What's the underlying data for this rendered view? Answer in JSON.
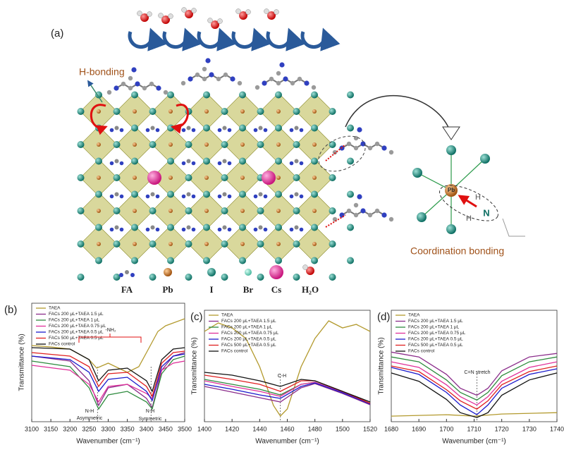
{
  "figure_a": {
    "label": "(a)",
    "h_bonding": "H-bonding",
    "coordination": "Coordination bonding",
    "atom_labels": {
      "pb": "Pb",
      "n": "N",
      "h1": "H",
      "h2": "H"
    },
    "legend": [
      "FA",
      "Pb",
      "I",
      "Br",
      "Cs",
      "H₂O"
    ]
  },
  "chart_data": [
    {
      "type": "line",
      "panel": "(b)",
      "xlabel": "Wavenumber (cm⁻¹)",
      "ylabel": "Transmittance (%)",
      "xlim": [
        3100,
        3500
      ],
      "xticks": [
        3100,
        3150,
        3200,
        3250,
        3300,
        3350,
        3400,
        3450,
        3500
      ],
      "ylim": [
        0,
        168
      ],
      "annotations": [
        "-NH₂",
        "N-H",
        "Asymmetric",
        "N-H",
        "Symmetric"
      ],
      "reference_lines": [
        3272,
        3412
      ],
      "series": [
        {
          "name": "TAEA",
          "color": "#b39a2e",
          "x": [
            3100,
            3150,
            3200,
            3250,
            3270,
            3300,
            3350,
            3380,
            3400,
            3430,
            3450,
            3500
          ],
          "values": [
            108,
            106,
            103,
            88,
            76,
            83,
            70,
            78,
            98,
            128,
            136,
            146
          ]
        },
        {
          "name": "FACs 200 μL+TAEA 1.5 μL",
          "color": "#8b2d8b",
          "x": [
            3100,
            3200,
            3250,
            3275,
            3300,
            3350,
            3400,
            3415,
            3440,
            3470,
            3500
          ],
          "values": [
            93,
            86,
            58,
            23,
            48,
            53,
            33,
            20,
            73,
            93,
            98
          ]
        },
        {
          "name": "FACs 200 μL+TAEA 1 μL",
          "color": "#2e8b3e",
          "x": [
            3100,
            3200,
            3250,
            3275,
            3300,
            3350,
            3400,
            3415,
            3440,
            3470,
            3500
          ],
          "values": [
            86,
            78,
            48,
            18,
            38,
            43,
            28,
            18,
            68,
            88,
            93
          ]
        },
        {
          "name": "FACs 200 μL+TAEA 0.75 μL",
          "color": "#e0309a",
          "x": [
            3100,
            3200,
            3250,
            3275,
            3300,
            3350,
            3400,
            3415,
            3440,
            3470,
            3500
          ],
          "values": [
            80,
            73,
            53,
            28,
            50,
            53,
            40,
            33,
            73,
            83,
            86
          ]
        },
        {
          "name": "FACs 200 μL+TAEA 0.5 μL",
          "color": "#1a1acc",
          "x": [
            3100,
            3200,
            3250,
            3275,
            3300,
            3350,
            3400,
            3415,
            3440,
            3470,
            3500
          ],
          "values": [
            93,
            88,
            70,
            43,
            60,
            63,
            43,
            30,
            78,
            93,
            96
          ]
        },
        {
          "name": "FACs 500 μL+TAEA 0.5 μL",
          "color": "#e02020",
          "x": [
            3100,
            3200,
            3250,
            3275,
            3300,
            3350,
            3400,
            3415,
            3440,
            3470,
            3500
          ],
          "values": [
            98,
            93,
            78,
            50,
            68,
            70,
            50,
            36,
            83,
            98,
            100
          ]
        },
        {
          "name": "FACs control",
          "color": "#111111",
          "x": [
            3100,
            3200,
            3250,
            3275,
            3300,
            3350,
            3400,
            3415,
            3440,
            3470,
            3500
          ],
          "values": [
            105,
            103,
            88,
            58,
            73,
            76,
            58,
            43,
            88,
            103,
            105
          ]
        }
      ]
    },
    {
      "type": "line",
      "panel": "(c)",
      "xlabel": "Wavenumber (cm⁻¹)",
      "ylabel": "Transmittance (%)",
      "xlim": [
        1400,
        1520
      ],
      "xticks": [
        1400,
        1420,
        1440,
        1460,
        1480,
        1500,
        1520
      ],
      "ylim": [
        0,
        158
      ],
      "annotations": [
        "C-H"
      ],
      "reference_lines": [
        1455
      ],
      "series": [
        {
          "name": "TAEA",
          "color": "#b39a2e",
          "x": [
            1400,
            1410,
            1420,
            1430,
            1440,
            1450,
            1455,
            1460,
            1470,
            1480,
            1490,
            1500,
            1510,
            1520
          ],
          "values": [
            128,
            140,
            133,
            118,
            78,
            23,
            8,
            18,
            78,
            118,
            143,
            133,
            138,
            128
          ]
        },
        {
          "name": "FACs 200 μL+TAEA 1.5 μL",
          "color": "#8b2d8b",
          "x": [
            1400,
            1420,
            1440,
            1455,
            1470,
            1480,
            1500,
            1520
          ],
          "values": [
            50,
            42,
            34,
            28,
            48,
            54,
            40,
            24
          ]
        },
        {
          "name": "FACs 200 μL+TAEA 1 μL",
          "color": "#2e8b3e",
          "x": [
            1400,
            1420,
            1440,
            1455,
            1470,
            1480,
            1500,
            1520
          ],
          "values": [
            60,
            53,
            46,
            38,
            53,
            56,
            42,
            26
          ]
        },
        {
          "name": "FACs 200 μL+TAEA 0.75 μL",
          "color": "#e0309a",
          "x": [
            1400,
            1420,
            1440,
            1455,
            1470,
            1480,
            1500,
            1520
          ],
          "values": [
            58,
            50,
            43,
            36,
            53,
            56,
            42,
            26
          ]
        },
        {
          "name": "FACs 200 μL+TAEA 0.5 μL",
          "color": "#1a1acc",
          "x": [
            1400,
            1420,
            1440,
            1455,
            1470,
            1480,
            1500,
            1520
          ],
          "values": [
            53,
            46,
            38,
            33,
            50,
            55,
            41,
            25
          ]
        },
        {
          "name": "FACs 500 μL+TAEA 0.5 μL",
          "color": "#e02020",
          "x": [
            1400,
            1420,
            1440,
            1455,
            1470,
            1480,
            1500,
            1520
          ],
          "values": [
            66,
            60,
            53,
            43,
            58,
            58,
            43,
            26
          ]
        },
        {
          "name": "FACs control",
          "color": "#111111",
          "x": [
            1400,
            1420,
            1440,
            1455,
            1470,
            1480,
            1500,
            1520
          ],
          "values": [
            70,
            66,
            58,
            50,
            60,
            58,
            43,
            28
          ]
        }
      ]
    },
    {
      "type": "line",
      "panel": "(d)",
      "xlabel": "Wavenumber (cm⁻¹)",
      "ylabel": "Transmittance (%)",
      "xlim": [
        1680,
        1740
      ],
      "xticks": [
        1680,
        1690,
        1700,
        1710,
        1720,
        1730,
        1740
      ],
      "ylim": [
        0,
        160
      ],
      "annotations": [
        "C=N stretch"
      ],
      "reference_lines": [
        1711
      ],
      "series": [
        {
          "name": "TAEA",
          "color": "#b39a2e",
          "x": [
            1680,
            1700,
            1710,
            1720,
            1740
          ],
          "values": [
            8,
            10,
            8,
            11,
            13
          ]
        },
        {
          "name": "FACs 200 μL+TAEA 1.5 μL",
          "color": "#8b2d8b",
          "x": [
            1680,
            1690,
            1700,
            1705,
            1711,
            1715,
            1720,
            1730,
            1740
          ],
          "values": [
            100,
            93,
            68,
            48,
            38,
            48,
            73,
            93,
            98
          ]
        },
        {
          "name": "FACs 200 μL+TAEA 1 μL",
          "color": "#2e8b3e",
          "x": [
            1680,
            1690,
            1700,
            1705,
            1711,
            1715,
            1720,
            1730,
            1740
          ],
          "values": [
            93,
            86,
            60,
            42,
            31,
            42,
            66,
            86,
            93
          ]
        },
        {
          "name": "FACs 200 μL+TAEA 0.75 μL",
          "color": "#e0309a",
          "x": [
            1680,
            1690,
            1700,
            1705,
            1711,
            1715,
            1720,
            1730,
            1740
          ],
          "values": [
            86,
            78,
            53,
            36,
            24,
            36,
            58,
            78,
            86
          ]
        },
        {
          "name": "FACs 200 μL+TAEA 0.5 μL",
          "color": "#1a1acc",
          "x": [
            1680,
            1690,
            1700,
            1705,
            1711,
            1715,
            1720,
            1730,
            1740
          ],
          "values": [
            78,
            68,
            42,
            24,
            10,
            24,
            48,
            68,
            76
          ]
        },
        {
          "name": "FACs 500 μL+TAEA 0.5 μL",
          "color": "#e02020",
          "x": [
            1680,
            1690,
            1700,
            1705,
            1711,
            1715,
            1720,
            1730,
            1740
          ],
          "values": [
            80,
            72,
            46,
            30,
            18,
            30,
            53,
            72,
            80
          ]
        },
        {
          "name": "FACs control",
          "color": "#111111",
          "x": [
            1680,
            1690,
            1700,
            1705,
            1711,
            1715,
            1720,
            1730,
            1740
          ],
          "values": [
            70,
            58,
            32,
            13,
            6,
            13,
            38,
            60,
            70
          ]
        }
      ]
    }
  ]
}
